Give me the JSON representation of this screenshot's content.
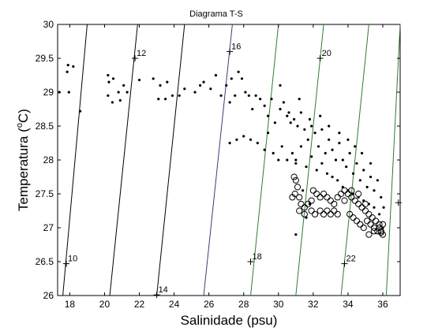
{
  "chart_data": {
    "type": "scatter",
    "title": "Diagrama T-S",
    "xlabel": "Salinidade (psu)",
    "ylabel_main": "Temperatura (",
    "ylabel_sup": "o",
    "ylabel_end": "C)",
    "xlim": [
      17.3,
      37
    ],
    "ylim": [
      26,
      30
    ],
    "xticks": [
      18,
      20,
      22,
      24,
      26,
      28,
      30,
      32,
      34,
      36
    ],
    "yticks": [
      26,
      26.5,
      27,
      27.5,
      28,
      28.5,
      29,
      29.5,
      30
    ],
    "ytick_labels": [
      "26",
      "26.5",
      "27",
      "27.5",
      "28",
      "28.5",
      "29",
      "29.5",
      "30"
    ],
    "grid": false,
    "isopycnals": [
      {
        "label": "10",
        "color": "#000000",
        "x_at_ymin": 17.6,
        "x_at_ymax": 19.0,
        "label_x": 17.8,
        "label_y": 26.47
      },
      {
        "label": "12",
        "color": "#000000",
        "x_at_ymin": 20.3,
        "x_at_ymax": 21.9,
        "label_x": 21.75,
        "label_y": 29.5
      },
      {
        "label": "14",
        "color": "#000000",
        "x_at_ymin": 23.0,
        "x_at_ymax": 24.6,
        "label_x": 23.0,
        "label_y": 26.01
      },
      {
        "label": "16",
        "color": "#3c3c78",
        "x_at_ymin": 25.7,
        "x_at_ymax": 27.35,
        "label_x": 27.2,
        "label_y": 29.6
      },
      {
        "label": "18",
        "color": "#2e7d2e",
        "x_at_ymin": 28.4,
        "x_at_ymax": 30.0,
        "label_x": 28.4,
        "label_y": 26.5
      },
      {
        "label": "20",
        "color": "#2e7d2e",
        "x_at_ymin": 31.0,
        "x_at_ymax": 32.6,
        "label_x": 32.4,
        "label_y": 29.5
      },
      {
        "label": "22",
        "color": "#2e7d2e",
        "x_at_ymin": 33.6,
        "x_at_ymax": 35.2,
        "label_x": 33.8,
        "label_y": 26.47
      },
      {
        "label": "",
        "color": "#2e7d2e",
        "x_at_ymin": 36.2,
        "x_at_ymax": 37.0,
        "label_x": 36.9,
        "label_y": 27.37
      }
    ],
    "series": [
      {
        "marker": "dot",
        "points": [
          [
            17.4,
            29.0
          ],
          [
            17.9,
            29.4
          ],
          [
            17.85,
            29.3
          ],
          [
            18.2,
            29.38
          ],
          [
            17.95,
            29.0
          ],
          [
            18.6,
            28.72
          ],
          [
            20.2,
            29.25
          ],
          [
            20.25,
            29.15
          ],
          [
            20.5,
            29.2
          ],
          [
            20.2,
            28.95
          ],
          [
            20.45,
            28.85
          ],
          [
            20.9,
            28.88
          ],
          [
            20.8,
            29.0
          ],
          [
            21.1,
            29.1
          ],
          [
            21.3,
            29.0
          ],
          [
            22.0,
            29.18
          ],
          [
            22.8,
            29.2
          ],
          [
            23.2,
            29.1
          ],
          [
            23.6,
            29.15
          ],
          [
            23.1,
            28.9
          ],
          [
            23.5,
            28.9
          ],
          [
            23.9,
            28.95
          ],
          [
            24.3,
            28.95
          ],
          [
            24.6,
            29.05
          ],
          [
            25.2,
            29.0
          ],
          [
            25.5,
            29.1
          ],
          [
            25.7,
            29.15
          ],
          [
            26.1,
            29.05
          ],
          [
            26.4,
            29.25
          ],
          [
            26.7,
            28.95
          ],
          [
            27.0,
            29.1
          ],
          [
            27.3,
            29.2
          ],
          [
            27.2,
            28.85
          ],
          [
            27.5,
            28.95
          ],
          [
            27.7,
            29.3
          ],
          [
            27.9,
            29.2
          ],
          [
            28.1,
            29.0
          ],
          [
            28.3,
            28.95
          ],
          [
            28.5,
            28.75
          ],
          [
            28.7,
            28.95
          ],
          [
            28.95,
            28.9
          ],
          [
            29.2,
            28.8
          ],
          [
            29.4,
            28.65
          ],
          [
            29.6,
            28.9
          ],
          [
            29.8,
            28.55
          ],
          [
            30.1,
            28.75
          ],
          [
            30.3,
            28.85
          ],
          [
            30.5,
            28.65
          ],
          [
            30.7,
            28.55
          ],
          [
            30.9,
            28.6
          ],
          [
            31.1,
            28.5
          ],
          [
            31.3,
            28.7
          ],
          [
            31.5,
            28.45
          ],
          [
            31.7,
            28.3
          ],
          [
            31.9,
            28.5
          ],
          [
            32.1,
            28.4
          ],
          [
            32.3,
            28.2
          ],
          [
            32.5,
            28.45
          ],
          [
            32.7,
            28.1
          ],
          [
            32.9,
            28.3
          ],
          [
            33.1,
            28.15
          ],
          [
            33.3,
            28.0
          ],
          [
            33.5,
            28.25
          ],
          [
            33.7,
            28.0
          ],
          [
            33.9,
            27.9
          ],
          [
            34.1,
            28.1
          ],
          [
            34.3,
            27.8
          ],
          [
            34.5,
            27.95
          ],
          [
            34.7,
            27.7
          ],
          [
            34.9,
            27.85
          ],
          [
            35.1,
            27.6
          ],
          [
            35.3,
            27.75
          ],
          [
            35.5,
            27.55
          ],
          [
            35.7,
            27.7
          ],
          [
            35.9,
            27.45
          ],
          [
            36.05,
            27.3
          ],
          [
            36.0,
            27.0
          ],
          [
            27.2,
            28.25
          ],
          [
            27.6,
            28.3
          ],
          [
            28.0,
            28.35
          ],
          [
            28.4,
            28.3
          ],
          [
            28.8,
            28.25
          ],
          [
            29.2,
            28.15
          ],
          [
            29.4,
            28.4
          ],
          [
            29.7,
            28.1
          ],
          [
            30.0,
            28.0
          ],
          [
            30.2,
            28.2
          ],
          [
            30.5,
            28.0
          ],
          [
            30.8,
            28.1
          ],
          [
            31.0,
            28.0
          ],
          [
            31.3,
            28.2
          ],
          [
            31.6,
            27.9
          ],
          [
            31.9,
            28.05
          ],
          [
            32.2,
            27.85
          ],
          [
            32.5,
            27.95
          ],
          [
            32.8,
            27.8
          ],
          [
            33.1,
            27.75
          ],
          [
            33.4,
            27.7
          ],
          [
            33.7,
            27.6
          ],
          [
            34.0,
            27.55
          ],
          [
            34.3,
            27.5
          ],
          [
            34.6,
            27.45
          ],
          [
            34.9,
            27.4
          ],
          [
            35.2,
            27.35
          ],
          [
            35.5,
            27.3
          ],
          [
            35.8,
            27.2
          ],
          [
            30.1,
            29.1
          ],
          [
            30.6,
            28.7
          ],
          [
            31.2,
            28.9
          ],
          [
            31.8,
            28.6
          ],
          [
            32.4,
            28.65
          ],
          [
            32.9,
            28.5
          ],
          [
            33.5,
            28.4
          ],
          [
            34.0,
            28.3
          ],
          [
            34.4,
            28.2
          ],
          [
            34.8,
            28.1
          ],
          [
            35.3,
            27.95
          ],
          [
            31.0,
            27.95
          ],
          [
            31.4,
            27.55
          ],
          [
            31.6,
            27.15
          ],
          [
            31.0,
            26.9
          ],
          [
            31.8,
            27.35
          ]
        ]
      },
      {
        "marker": "circle",
        "points": [
          [
            30.9,
            27.75
          ],
          [
            31.0,
            27.7
          ],
          [
            31.1,
            27.6
          ],
          [
            30.95,
            27.5
          ],
          [
            30.8,
            27.45
          ],
          [
            31.2,
            27.45
          ],
          [
            31.3,
            27.35
          ],
          [
            31.5,
            27.3
          ],
          [
            31.7,
            27.35
          ],
          [
            31.9,
            27.4
          ],
          [
            32.0,
            27.55
          ],
          [
            32.2,
            27.5
          ],
          [
            32.4,
            27.45
          ],
          [
            32.6,
            27.5
          ],
          [
            32.8,
            27.45
          ],
          [
            33.0,
            27.4
          ],
          [
            33.2,
            27.35
          ],
          [
            33.4,
            27.45
          ],
          [
            33.6,
            27.5
          ],
          [
            33.8,
            27.55
          ],
          [
            34.0,
            27.5
          ],
          [
            34.2,
            27.45
          ],
          [
            34.4,
            27.4
          ],
          [
            34.6,
            27.35
          ],
          [
            34.8,
            27.3
          ],
          [
            35.0,
            27.25
          ],
          [
            35.2,
            27.2
          ],
          [
            35.4,
            27.15
          ],
          [
            35.6,
            27.1
          ],
          [
            35.8,
            27.05
          ],
          [
            35.9,
            26.95
          ],
          [
            36.0,
            26.9
          ],
          [
            35.7,
            26.95
          ],
          [
            35.5,
            27.0
          ],
          [
            35.3,
            27.05
          ],
          [
            35.1,
            27.1
          ],
          [
            34.9,
            27.0
          ],
          [
            34.7,
            27.05
          ],
          [
            34.5,
            27.1
          ],
          [
            34.3,
            27.15
          ],
          [
            34.1,
            27.2
          ],
          [
            32.4,
            27.25
          ],
          [
            32.6,
            27.2
          ],
          [
            32.8,
            27.25
          ],
          [
            33.0,
            27.2
          ],
          [
            33.2,
            27.25
          ],
          [
            33.4,
            27.2
          ],
          [
            31.2,
            27.25
          ],
          [
            31.5,
            27.2
          ],
          [
            35.2,
            26.9
          ],
          [
            35.5,
            26.95
          ],
          [
            35.8,
            27.0
          ],
          [
            36.0,
            27.05
          ],
          [
            35.0,
            27.35
          ],
          [
            34.6,
            27.5
          ],
          [
            34.2,
            27.55
          ],
          [
            33.8,
            27.4
          ],
          [
            31.9,
            27.25
          ],
          [
            32.1,
            27.2
          ],
          [
            35.9,
            26.93
          ]
        ]
      }
    ]
  }
}
